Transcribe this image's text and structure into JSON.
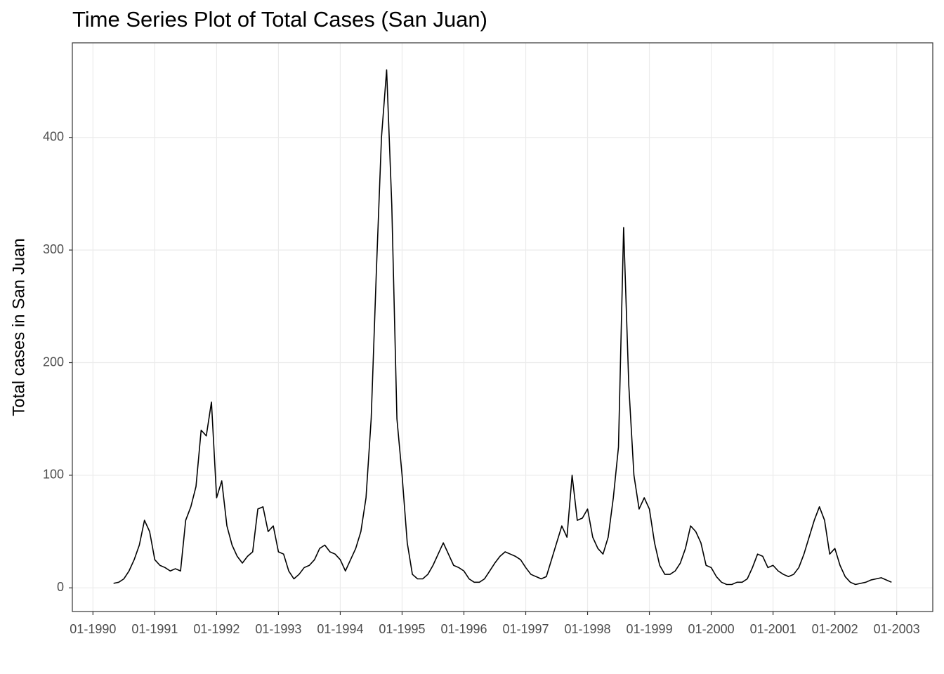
{
  "chart_data": {
    "type": "line",
    "title": "Time Series Plot of Total Cases (San Juan)",
    "y_label": "Total cases in San Juan",
    "color": "#000000",
    "grid": true,
    "x": [
      "1990-05",
      "1990-06",
      "1990-07",
      "1990-08",
      "1990-09",
      "1990-10",
      "1990-11",
      "1990-12",
      "1991-01",
      "1991-02",
      "1991-03",
      "1991-04",
      "1991-05",
      "1991-06",
      "1991-07",
      "1991-08",
      "1991-09",
      "1991-10",
      "1991-11",
      "1991-12",
      "1992-01",
      "1992-02",
      "1992-03",
      "1992-04",
      "1992-05",
      "1992-06",
      "1992-07",
      "1992-08",
      "1992-09",
      "1992-10",
      "1992-11",
      "1992-12",
      "1993-01",
      "1993-02",
      "1993-03",
      "1993-04",
      "1993-05",
      "1993-06",
      "1993-07",
      "1993-08",
      "1993-09",
      "1993-10",
      "1993-11",
      "1993-12",
      "1994-01",
      "1994-02",
      "1994-03",
      "1994-04",
      "1994-05",
      "1994-06",
      "1994-07",
      "1994-08",
      "1994-09",
      "1994-10",
      "1994-11",
      "1994-12",
      "1995-01",
      "1995-02",
      "1995-03",
      "1995-04",
      "1995-05",
      "1995-06",
      "1995-07",
      "1995-08",
      "1995-09",
      "1995-10",
      "1995-11",
      "1995-12",
      "1996-01",
      "1996-02",
      "1996-03",
      "1996-04",
      "1996-05",
      "1996-06",
      "1996-07",
      "1996-08",
      "1996-09",
      "1996-10",
      "1996-11",
      "1996-12",
      "1997-01",
      "1997-02",
      "1997-03",
      "1997-04",
      "1997-05",
      "1997-06",
      "1997-07",
      "1997-08",
      "1997-09",
      "1997-10",
      "1997-11",
      "1997-12",
      "1998-01",
      "1998-02",
      "1998-03",
      "1998-04",
      "1998-05",
      "1998-06",
      "1998-07",
      "1998-08",
      "1998-09",
      "1998-10",
      "1998-11",
      "1998-12",
      "1999-01",
      "1999-02",
      "1999-03",
      "1999-04",
      "1999-05",
      "1999-06",
      "1999-07",
      "1999-08",
      "1999-09",
      "1999-10",
      "1999-11",
      "1999-12",
      "2000-01",
      "2000-02",
      "2000-03",
      "2000-04",
      "2000-05",
      "2000-06",
      "2000-07",
      "2000-08",
      "2000-09",
      "2000-10",
      "2000-11",
      "2000-12",
      "2001-01",
      "2001-02",
      "2001-03",
      "2001-04",
      "2001-05",
      "2001-06",
      "2001-07",
      "2001-08",
      "2001-09",
      "2001-10",
      "2001-11",
      "2001-12",
      "2002-01",
      "2002-02",
      "2002-03",
      "2002-04",
      "2002-05",
      "2002-06",
      "2002-07",
      "2002-08",
      "2002-09",
      "2002-10",
      "2002-11",
      "2002-12"
    ],
    "values": [
      4,
      5,
      8,
      15,
      25,
      38,
      60,
      50,
      25,
      20,
      18,
      15,
      17,
      15,
      60,
      72,
      90,
      140,
      135,
      165,
      80,
      95,
      55,
      38,
      28,
      22,
      28,
      32,
      70,
      72,
      50,
      55,
      32,
      30,
      15,
      8,
      12,
      18,
      20,
      25,
      35,
      38,
      32,
      30,
      25,
      15,
      25,
      35,
      50,
      80,
      150,
      280,
      400,
      460,
      340,
      150,
      100,
      40,
      12,
      8,
      8,
      12,
      20,
      30,
      40,
      30,
      20,
      18,
      15,
      8,
      5,
      5,
      8,
      15,
      22,
      28,
      32,
      30,
      28,
      25,
      18,
      12,
      10,
      8,
      10,
      25,
      40,
      55,
      45,
      100,
      60,
      62,
      70,
      45,
      35,
      30,
      45,
      80,
      125,
      320,
      180,
      100,
      70,
      80,
      70,
      40,
      20,
      12,
      12,
      15,
      22,
      35,
      55,
      50,
      40,
      20,
      18,
      10,
      5,
      3,
      3,
      5,
      5,
      8,
      18,
      30,
      28,
      18,
      20,
      15,
      12,
      10,
      12,
      18,
      30,
      45,
      60,
      72,
      60,
      30,
      35,
      20,
      10,
      5,
      3,
      4,
      5,
      7,
      8,
      9,
      7,
      5
    ],
    "xlim": [
      "1989-09",
      "2003-08"
    ],
    "xticks": [
      {
        "value": "1990-01",
        "label": "01-1990"
      },
      {
        "value": "1991-01",
        "label": "01-1991"
      },
      {
        "value": "1992-01",
        "label": "01-1992"
      },
      {
        "value": "1993-01",
        "label": "01-1993"
      },
      {
        "value": "1994-01",
        "label": "01-1994"
      },
      {
        "value": "1995-01",
        "label": "01-1995"
      },
      {
        "value": "1996-01",
        "label": "01-1996"
      },
      {
        "value": "1997-01",
        "label": "01-1997"
      },
      {
        "value": "1998-01",
        "label": "01-1998"
      },
      {
        "value": "1999-01",
        "label": "01-1999"
      },
      {
        "value": "2000-01",
        "label": "01-2000"
      },
      {
        "value": "2001-01",
        "label": "01-2001"
      },
      {
        "value": "2002-01",
        "label": "01-2002"
      },
      {
        "value": "2003-01",
        "label": "01-2003"
      }
    ],
    "ylim": [
      -21,
      484
    ],
    "yticks": [
      0,
      100,
      200,
      300,
      400
    ]
  }
}
